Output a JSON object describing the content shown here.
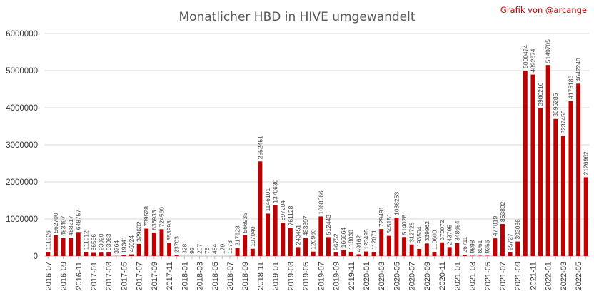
{
  "chart_data": {
    "type": "bar",
    "title": "Monatlicher HBD in HIVE umgewandelt",
    "credit": "Grafik von @arcange",
    "colors": {
      "bar": "#c00000",
      "label": "#c00000",
      "grid": "#d9d9d9",
      "axis_text": "#333333",
      "title": "#595959"
    },
    "ylim": [
      0,
      6000000
    ],
    "yticks": [
      0,
      1000000,
      2000000,
      3000000,
      4000000,
      5000000,
      6000000
    ],
    "grid": true,
    "legend": "none",
    "categories": [
      "2016-07",
      "2016-08",
      "2016-09",
      "2016-10",
      "2016-11",
      "2016-12",
      "2017-01",
      "2017-02",
      "2017-03",
      "2017-04",
      "2017-05",
      "2017-06",
      "2017-07",
      "2017-08",
      "2017-09",
      "2017-10",
      "2017-11",
      "2017-12",
      "2018-01",
      "2018-02",
      "2018-03",
      "2018-04",
      "2018-05",
      "2018-06",
      "2018-07",
      "2018-08",
      "2018-09",
      "2018-10",
      "2018-11",
      "2018-12",
      "2019-01",
      "2019-02",
      "2019-03",
      "2019-04",
      "2019-05",
      "2019-06",
      "2019-07",
      "2019-08",
      "2019-09",
      "2019-10",
      "2019-11",
      "2019-12",
      "2020-01",
      "2020-02",
      "2020-03",
      "2020-04",
      "2020-05",
      "2020-06",
      "2020-07",
      "2020-08",
      "2020-09",
      "2020-10",
      "2020-11",
      "2020-12",
      "2021-01",
      "2021-02",
      "2021-03",
      "2021-04",
      "2021-05",
      "2021-06",
      "2021-07",
      "2021-08",
      "2021-09",
      "2021-10",
      "2021-11",
      "2021-12",
      "2022-01",
      "2022-02",
      "2022-03",
      "2022-04",
      "2022-05",
      "2022-06"
    ],
    "xtick_labels": [
      "2016-07",
      "",
      "2016-09",
      "",
      "2016-11",
      "",
      "2017-01",
      "",
      "2017-03",
      "",
      "2017-05",
      "",
      "2017-07",
      "",
      "2017-09",
      "",
      "2017-11",
      "",
      "2018-01",
      "",
      "2018-03",
      "",
      "2018-05",
      "",
      "2018-07",
      "",
      "2018-09",
      "",
      "2018-11",
      "",
      "2019-01",
      "",
      "2019-03",
      "",
      "2019-05",
      "",
      "2019-07",
      "",
      "2019-09",
      "",
      "2019-11",
      "",
      "2020-01",
      "",
      "2020-03",
      "",
      "2020-05",
      "",
      "2020-07",
      "",
      "2020-09",
      "",
      "2020-11",
      "",
      "2021-01",
      "",
      "2021-03",
      "",
      "2021-05",
      "",
      "2021-07",
      "",
      "2021-09",
      "",
      "2021-11",
      "",
      "2022-01",
      "",
      "2022-03",
      "",
      "2022-05",
      ""
    ],
    "values": [
      111926,
      562700,
      483497,
      488217,
      648757,
      111012,
      86556,
      93020,
      93983,
      3764,
      19341,
      46024,
      329602,
      739528,
      636933,
      724560,
      353993,
      23703,
      328,
      92,
      207,
      76,
      484,
      179,
      1673,
      217628,
      566935,
      197040,
      2552451,
      1146101,
      1370630,
      897204,
      761128,
      243451,
      483897,
      120960,
      1068566,
      512443,
      96752,
      166864,
      118030,
      49162,
      123495,
      112071,
      729491,
      545151,
      1038253,
      514028,
      312728,
      193504,
      339962,
      110600,
      370072,
      243795,
      348654,
      26711,
      9898,
      8961,
      9356,
      477819,
      863892,
      95727,
      393086,
      5000474,
      4892674,
      3986216,
      5149705,
      3696285,
      3237450,
      4175186,
      4647240,
      2126962
    ],
    "data_labels": [
      "111926",
      "562700",
      "483497",
      "488217",
      "648757",
      "111012",
      "86556",
      "93020",
      "93983",
      "3764",
      "19341",
      "46024",
      "329602",
      "739528",
      "636933",
      "724560",
      "353993",
      "23703",
      "328",
      "92",
      "207",
      "76",
      "484",
      "179",
      "1673",
      "217628",
      "566935",
      "197040",
      "2552451",
      "1146101",
      "1370630",
      "897204",
      "761128",
      "243451",
      "483897",
      "120960",
      "1068566",
      "512443",
      "96752",
      "166864",
      "118030",
      "49162",
      "123495",
      "112071",
      "729491",
      "545151",
      "1038253",
      "514028",
      "312728",
      "193504",
      "339962",
      "110600",
      "370072",
      "243795",
      "348654",
      "26711",
      "9898",
      "8961",
      "9356",
      "477819",
      "863892",
      "95727",
      "393086",
      "5000474",
      "4892674",
      "3986216",
      "5149705",
      "3696285",
      "3237450",
      "4175186",
      "4647240",
      "2126962"
    ]
  }
}
